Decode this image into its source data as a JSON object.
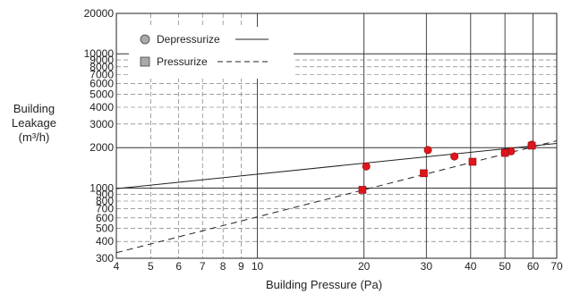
{
  "chart_data": {
    "type": "scatter",
    "xlabel": "Building Pressure (Pa)",
    "ylabel_lines": [
      "Building",
      "Leakage",
      "(m³/h)"
    ],
    "x_scale": "log",
    "y_scale": "log",
    "xlim": [
      4,
      70
    ],
    "ylim": [
      300,
      20000
    ],
    "x_ticks": [
      4,
      5,
      6,
      7,
      8,
      9,
      10,
      20,
      30,
      40,
      50,
      60,
      70
    ],
    "y_ticks": [
      300,
      400,
      500,
      600,
      700,
      800,
      900,
      1000,
      2000,
      3000,
      4000,
      5000,
      6000,
      7000,
      8000,
      9000,
      10000,
      20000
    ],
    "grid": true,
    "legend_position": "top-left",
    "series": [
      {
        "name": "Depressurize",
        "marker": "circle",
        "line": "solid",
        "color": "#e0141b",
        "points": [
          [
            20.3,
            1450
          ],
          [
            30.3,
            1920
          ],
          [
            36,
            1720
          ],
          [
            50,
            1830
          ],
          [
            52,
            1880
          ],
          [
            59.5,
            2100
          ]
        ],
        "fit": [
          [
            4,
            990
          ],
          [
            70,
            2150
          ]
        ]
      },
      {
        "name": "Pressurize",
        "marker": "square",
        "line": "dashed",
        "color": "#e0141b",
        "points": [
          [
            19.8,
            970
          ],
          [
            29.5,
            1290
          ],
          [
            40.5,
            1570
          ],
          [
            50,
            1830
          ],
          [
            59.5,
            2070
          ]
        ],
        "fit": [
          [
            4,
            330
          ],
          [
            70,
            2250
          ]
        ]
      }
    ]
  }
}
